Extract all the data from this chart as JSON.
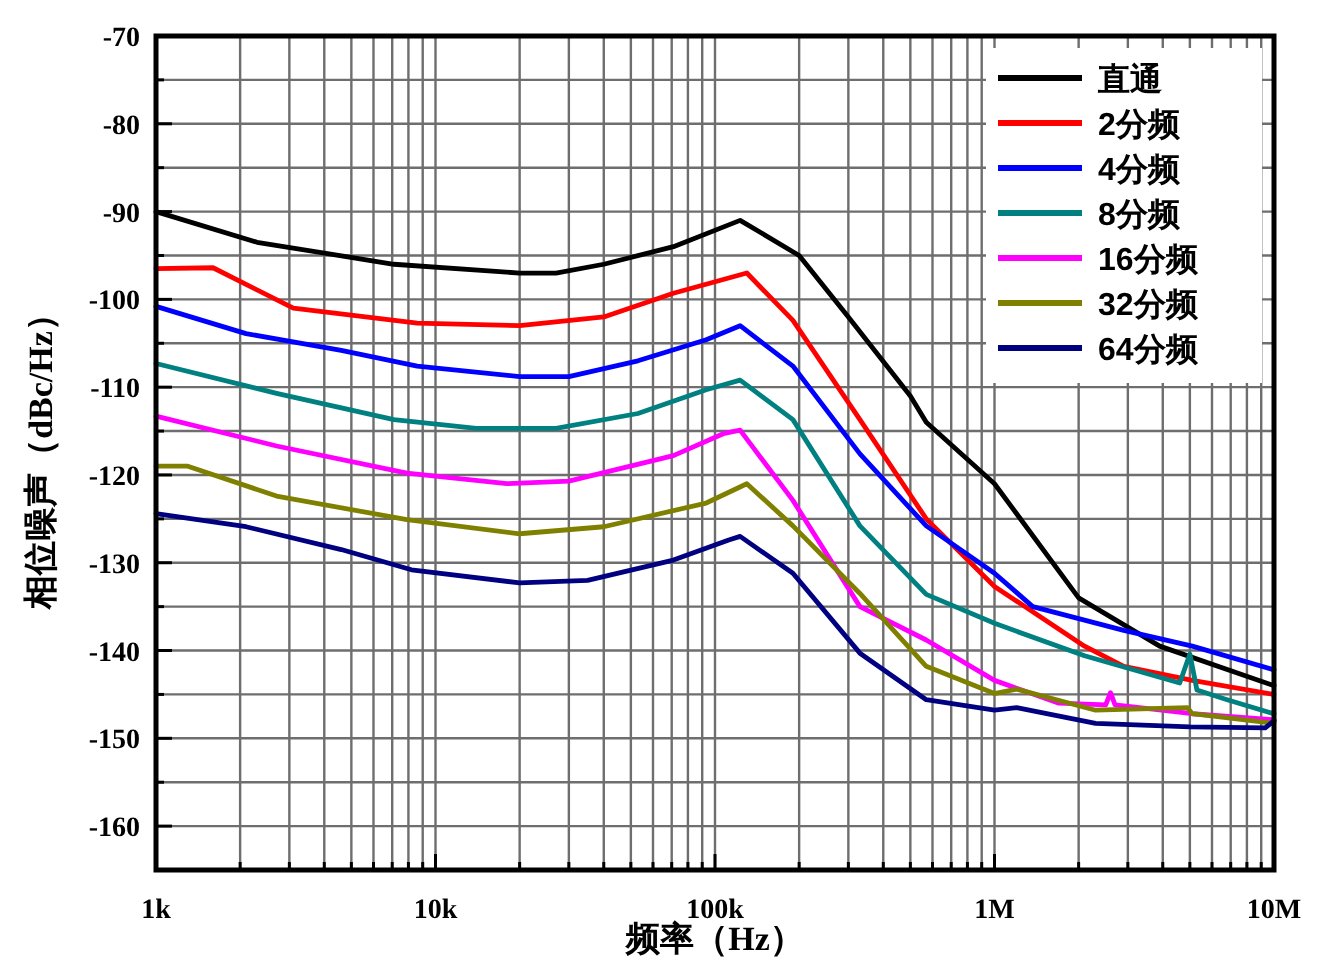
{
  "chart_data": {
    "type": "line",
    "xlabel": "频率（Hz）",
    "ylabel": "相位噪声（dBc/Hz）",
    "log": "x",
    "grid": true,
    "legend": "top right",
    "xlim": [
      1000,
      10000000
    ],
    "ylim": [
      -165,
      -70
    ],
    "xticks": [
      {
        "value": 1000,
        "label": "1k"
      },
      {
        "value": 2000,
        "label": null
      },
      {
        "value": 3000,
        "label": null
      },
      {
        "value": 4000,
        "label": null
      },
      {
        "value": 5000,
        "label": null
      },
      {
        "value": 6000,
        "label": null
      },
      {
        "value": 7000,
        "label": null
      },
      {
        "value": 8000,
        "label": null
      },
      {
        "value": 9000,
        "label": null
      },
      {
        "value": 10000,
        "label": "10k"
      },
      {
        "value": 20000,
        "label": null
      },
      {
        "value": 30000,
        "label": null
      },
      {
        "value": 40000,
        "label": null
      },
      {
        "value": 50000,
        "label": null
      },
      {
        "value": 60000,
        "label": null
      },
      {
        "value": 70000,
        "label": null
      },
      {
        "value": 80000,
        "label": null
      },
      {
        "value": 90000,
        "label": null
      },
      {
        "value": 100000,
        "label": "100k"
      },
      {
        "value": 200000,
        "label": null
      },
      {
        "value": 300000,
        "label": null
      },
      {
        "value": 400000,
        "label": null
      },
      {
        "value": 500000,
        "label": null
      },
      {
        "value": 600000,
        "label": null
      },
      {
        "value": 700000,
        "label": null
      },
      {
        "value": 800000,
        "label": null
      },
      {
        "value": 900000,
        "label": null
      },
      {
        "value": 1000000,
        "label": "1M"
      },
      {
        "value": 2000000,
        "label": null
      },
      {
        "value": 3000000,
        "label": null
      },
      {
        "value": 4000000,
        "label": null
      },
      {
        "value": 5000000,
        "label": null
      },
      {
        "value": 6000000,
        "label": null
      },
      {
        "value": 7000000,
        "label": null
      },
      {
        "value": 8000000,
        "label": null
      },
      {
        "value": 9000000,
        "label": null
      },
      {
        "value": 10000000,
        "label": "10M"
      }
    ],
    "yticks": [
      -70,
      {
        "value": -75,
        "label": null
      },
      -80,
      {
        "value": -85,
        "label": null
      },
      -90,
      {
        "value": -95,
        "label": null
      },
      -100,
      {
        "value": -105,
        "label": null
      },
      -110,
      {
        "value": -115,
        "label": null
      },
      -120,
      {
        "value": -125,
        "label": null
      },
      -130,
      {
        "value": -135,
        "label": null
      },
      -140,
      {
        "value": -145,
        "label": null
      },
      -150,
      {
        "value": -155,
        "label": null
      },
      -160,
      {
        "value": -165,
        "label": null
      }
    ],
    "series": [
      {
        "name": "直通",
        "color": "#000000",
        "x": [
          1000,
          2300,
          7100,
          20000,
          27000,
          40000,
          71000,
          123000,
          200000,
          300000,
          500000,
          570000,
          1000000,
          2000000,
          3900000,
          10000000
        ],
        "values": [
          -90,
          -93.5,
          -96,
          -97,
          -97,
          -96,
          -94,
          -91,
          -95,
          -102,
          -111,
          -114,
          -121,
          -134,
          -139.5,
          -144
        ]
      },
      {
        "name": "2分频",
        "color": "#ff0000",
        "x": [
          1000,
          1600,
          3100,
          8600,
          20000,
          40000,
          71000,
          130000,
          190000,
          330000,
          570000,
          1000000,
          2100000,
          2900000,
          5100000,
          10000000
        ],
        "values": [
          -96.5,
          -96.4,
          -101,
          -102.7,
          -103,
          -102,
          -99.3,
          -97,
          -102.4,
          -113.7,
          -125,
          -132.7,
          -139.5,
          -141.8,
          -143.4,
          -145
        ]
      },
      {
        "name": "4分频",
        "color": "#0000ff",
        "x": [
          1000,
          2100,
          4600,
          8600,
          20000,
          30000,
          53000,
          93000,
          123000,
          190000,
          330000,
          570000,
          1000000,
          1370000,
          2900000,
          5100000,
          10000000
        ],
        "values": [
          -100.8,
          -103.9,
          -105.8,
          -107.6,
          -108.8,
          -108.8,
          -107,
          -104.6,
          -103,
          -107.6,
          -117.6,
          -125.8,
          -131.2,
          -135,
          -137.7,
          -139.5,
          -142.2
        ]
      },
      {
        "name": "8分频",
        "color": "#008080",
        "x": [
          1000,
          2700,
          7100,
          14000,
          27000,
          53000,
          93000,
          123000,
          190000,
          330000,
          570000,
          1000000,
          2100000,
          4600000,
          5000000,
          5300000,
          6800000,
          10000000
        ],
        "values": [
          -107.3,
          -110.7,
          -113.7,
          -114.7,
          -114.7,
          -113,
          -110.3,
          -109.2,
          -113.7,
          -125.8,
          -133.6,
          -136.9,
          -140.6,
          -143.7,
          -140.4,
          -144.5,
          -145.6,
          -147.2
        ]
      },
      {
        "name": "16分频",
        "color": "#ff00ff",
        "x": [
          1000,
          2700,
          7900,
          18000,
          30000,
          71000,
          107000,
          123000,
          190000,
          330000,
          570000,
          1000000,
          1700000,
          2500000,
          2600000,
          2700000,
          5100000,
          10000000
        ],
        "values": [
          -113.3,
          -116.7,
          -119.8,
          -121,
          -120.7,
          -117.8,
          -115.3,
          -114.9,
          -122.9,
          -135,
          -138.8,
          -143.4,
          -146,
          -146.2,
          -144.8,
          -146.2,
          -147.2,
          -147.9
        ]
      },
      {
        "name": "32分频",
        "color": "#808000",
        "x": [
          1000,
          1300,
          2700,
          7900,
          20000,
          40000,
          93000,
          130000,
          190000,
          330000,
          570000,
          1000000,
          1200000,
          2300000,
          4900000,
          5100000,
          10000000
        ],
        "values": [
          -119,
          -119,
          -122.4,
          -125.1,
          -126.7,
          -125.9,
          -123.2,
          -121,
          -125.8,
          -133.5,
          -141.8,
          -144.9,
          -144.4,
          -146.8,
          -146.5,
          -147.2,
          -148.3
        ]
      },
      {
        "name": "64分频",
        "color": "#000080",
        "x": [
          1000,
          2100,
          4600,
          8200,
          20000,
          35000,
          71000,
          112000,
          123000,
          190000,
          330000,
          570000,
          1000000,
          1200000,
          2300000,
          5000000,
          9300000,
          10000000
        ],
        "values": [
          -124.4,
          -125.9,
          -128.5,
          -130.8,
          -132.3,
          -132,
          -129.7,
          -127.4,
          -127,
          -131.2,
          -140.3,
          -145.6,
          -146.8,
          -146.5,
          -148.3,
          -148.7,
          -148.8,
          -148
        ]
      }
    ]
  }
}
